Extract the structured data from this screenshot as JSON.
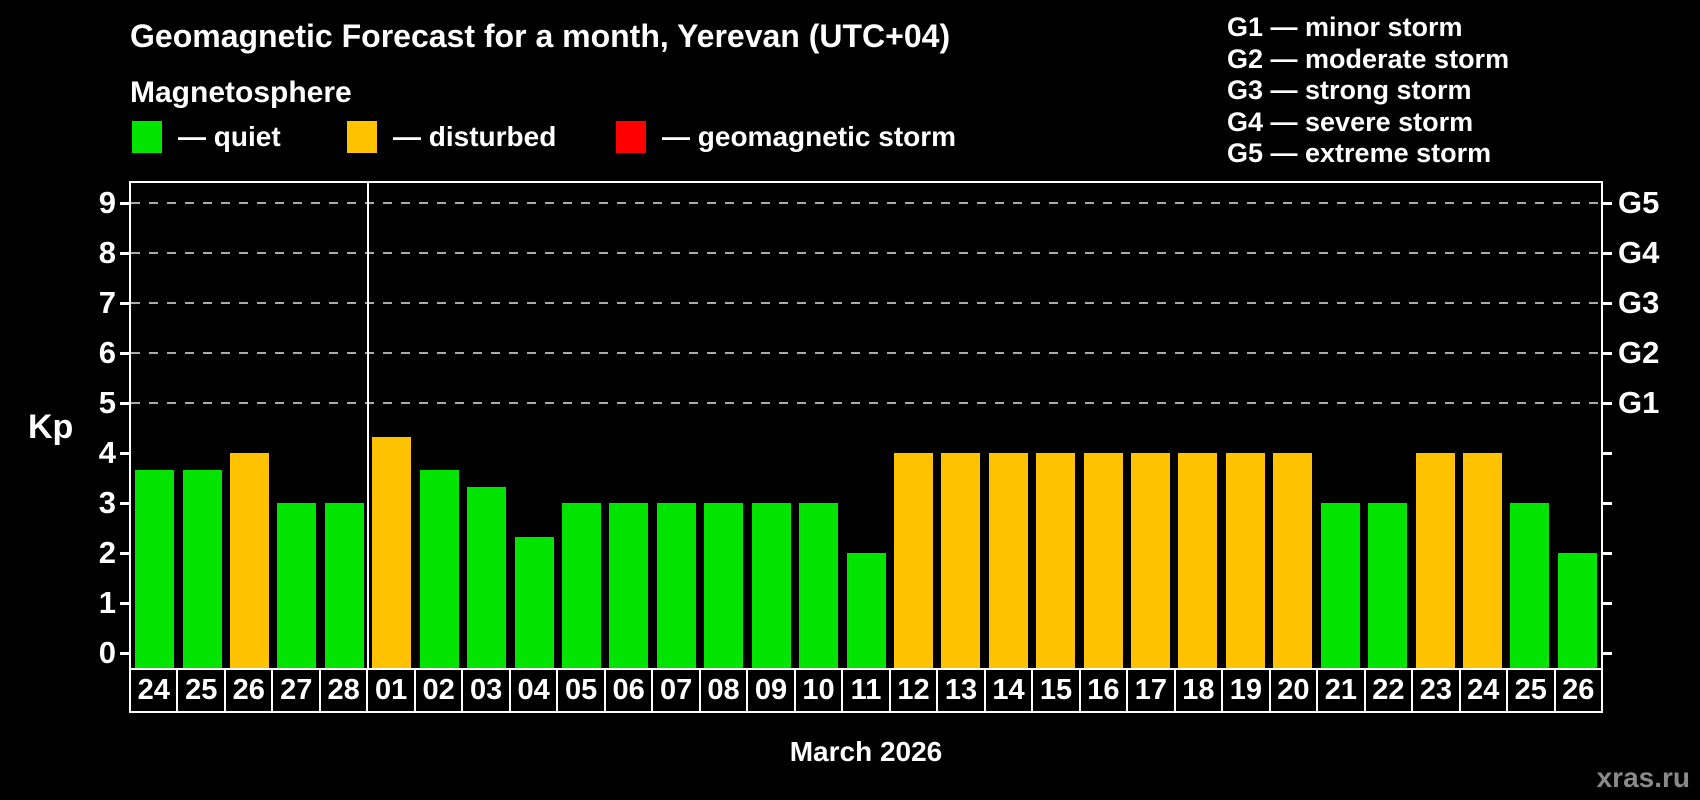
{
  "title": "Geomagnetic Forecast for a month, Yerevan (UTC+04)",
  "subtitle": "Magnetosphere",
  "legend": {
    "quiet_label": "— quiet",
    "disturbed_label": "— disturbed",
    "storm_label": "— geomagnetic storm"
  },
  "g_legend": [
    {
      "code": "G1",
      "label": "minor storm"
    },
    {
      "code": "G2",
      "label": "moderate storm"
    },
    {
      "code": "G3",
      "label": "strong storm"
    },
    {
      "code": "G4",
      "label": "severe storm"
    },
    {
      "code": "G5",
      "label": "extreme storm"
    }
  ],
  "colors": {
    "quiet": "#00e400",
    "disturbed": "#ffc200",
    "storm": "#ff0000",
    "background": "#000000",
    "text": "#ffffff",
    "grid": "#aaaaaa",
    "watermark": "#8a8a8a"
  },
  "axis": {
    "kp_label": "Kp",
    "left_ticks": [
      0,
      1,
      2,
      3,
      4,
      5,
      6,
      7,
      8,
      9
    ],
    "right_labels": [
      {
        "kp": 5,
        "label": "G1"
      },
      {
        "kp": 6,
        "label": "G2"
      },
      {
        "kp": 7,
        "label": "G3"
      },
      {
        "kp": 8,
        "label": "G4"
      },
      {
        "kp": 9,
        "label": "G5"
      }
    ]
  },
  "footer": {
    "month_label": "March 2026",
    "watermark": "xras.ru"
  },
  "chart_data": {
    "type": "bar",
    "title": "Geomagnetic Forecast for a month, Yerevan (UTC+04)",
    "xlabel": "March 2026",
    "ylabel": "Kp",
    "ylim": [
      0,
      9.4
    ],
    "grid": "horizontal dashed lines at Kp 5,6,7,8,9 (G1–G5 storm levels)",
    "legend_position": "top",
    "gridlines_kp": [
      5,
      6,
      7,
      8,
      9
    ],
    "month_boundary_after_index": 4,
    "categories": [
      "24",
      "25",
      "26",
      "27",
      "28",
      "01",
      "02",
      "03",
      "04",
      "05",
      "06",
      "07",
      "08",
      "09",
      "10",
      "11",
      "12",
      "13",
      "14",
      "15",
      "16",
      "17",
      "18",
      "19",
      "20",
      "21",
      "22",
      "23",
      "24",
      "25",
      "26"
    ],
    "values": [
      3.67,
      3.67,
      4,
      3,
      3,
      4.33,
      3.67,
      3.33,
      2.33,
      3,
      3,
      3,
      3,
      3,
      3,
      2,
      4,
      4,
      4,
      4,
      4,
      4,
      4,
      4,
      4,
      3,
      3,
      4,
      4,
      3,
      2
    ],
    "statuses": [
      "quiet",
      "quiet",
      "disturbed",
      "quiet",
      "quiet",
      "disturbed",
      "quiet",
      "quiet",
      "quiet",
      "quiet",
      "quiet",
      "quiet",
      "quiet",
      "quiet",
      "quiet",
      "quiet",
      "disturbed",
      "disturbed",
      "disturbed",
      "disturbed",
      "disturbed",
      "disturbed",
      "disturbed",
      "disturbed",
      "disturbed",
      "quiet",
      "quiet",
      "disturbed",
      "disturbed",
      "quiet",
      "quiet"
    ]
  }
}
